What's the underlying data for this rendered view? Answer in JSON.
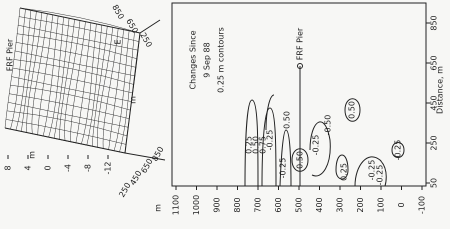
{
  "left_panel": {
    "label": "FRF Pier",
    "axis_unit_e": "E",
    "axis_unit_m1": "m",
    "axis_unit_m2": "m",
    "axis_unit_m3": "m",
    "z_ticks": [
      8,
      4,
      0,
      -4,
      -8,
      -12
    ],
    "bottom_ticks": [
      250,
      450,
      650,
      850
    ],
    "top_ticks": [
      850,
      650,
      250
    ]
  },
  "right_panel": {
    "title_lines": [
      "Changes Since",
      "9 Sep 88",
      "0.25 m contours"
    ],
    "pier_label": "FRF Pier",
    "x_label": "Distance, m",
    "y_ticks": [
      1100,
      1000,
      900,
      800,
      700,
      600,
      500,
      400,
      300,
      200,
      100,
      0,
      -100
    ],
    "x_ticks": [
      50,
      250,
      450,
      650,
      850
    ],
    "contour_labels": [
      "0.25",
      "0.50",
      "0.75",
      "-0.25",
      "-0.25",
      "0.50",
      "-0.25",
      "0.25",
      "0.50",
      "-0.25",
      "-0.25",
      "-0.50",
      "0.50",
      "-0.25"
    ]
  }
}
